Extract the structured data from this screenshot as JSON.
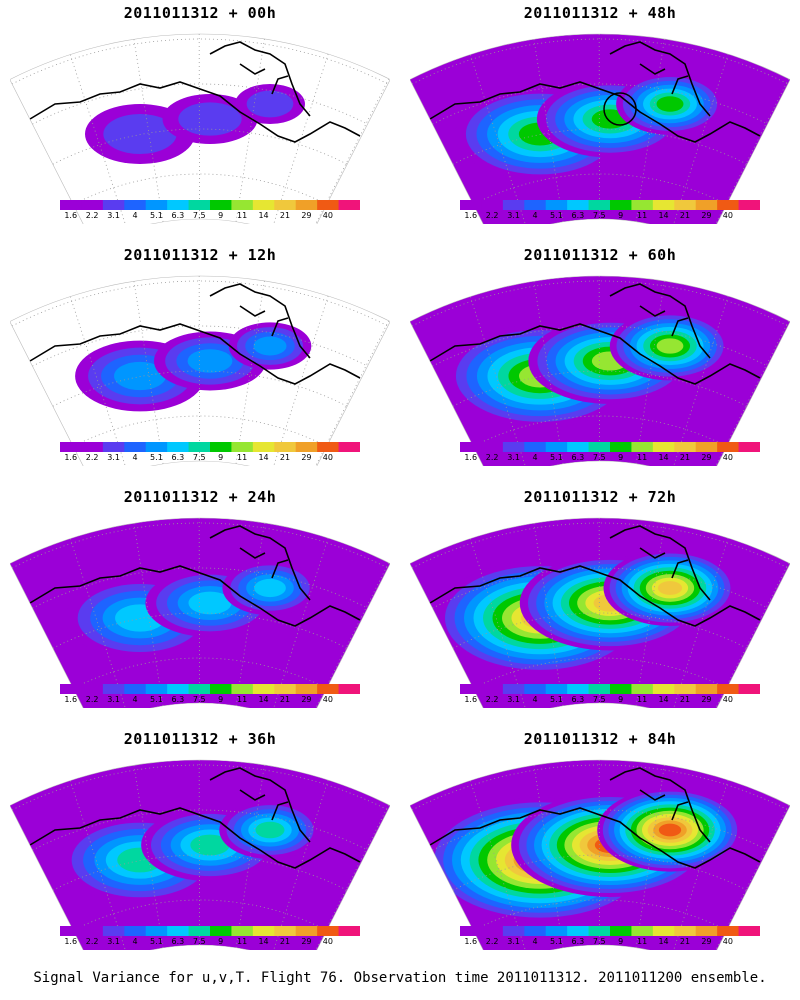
{
  "colorbar": {
    "labels": [
      "1.6",
      "2.2",
      "3.1",
      "4",
      "5.1",
      "6.3",
      "7.5",
      "9",
      "11",
      "14",
      "21",
      "29",
      "40"
    ],
    "colors": [
      "#9b00d7",
      "#9b00d7",
      "#5a3cf0",
      "#1e64ff",
      "#0096ff",
      "#00c8ff",
      "#00d7a0",
      "#00c800",
      "#96e632",
      "#e6e632",
      "#f0c83c",
      "#f0a028",
      "#f05a14",
      "#f0147a"
    ]
  },
  "panels": [
    {
      "title": "2011011312 + 00h",
      "intensity": 0,
      "has_circle": false
    },
    {
      "title": "2011011312 + 48h",
      "intensity": 3,
      "has_circle": true
    },
    {
      "title": "2011011312 + 12h",
      "intensity": 1,
      "has_circle": false
    },
    {
      "title": "2011011312 + 60h",
      "intensity": 4,
      "has_circle": false
    },
    {
      "title": "2011011312 + 24h",
      "intensity": 2,
      "has_circle": false
    },
    {
      "title": "2011011312 + 72h",
      "intensity": 5,
      "has_circle": false
    },
    {
      "title": "2011011312 + 36h",
      "intensity": 2.5,
      "has_circle": false
    },
    {
      "title": "2011011312 + 84h",
      "intensity": 6,
      "has_circle": false
    }
  ],
  "caption": "Signal Variance for u,v,T. Flight 76. Observation time 2011011312. 2011011200 ensemble."
}
